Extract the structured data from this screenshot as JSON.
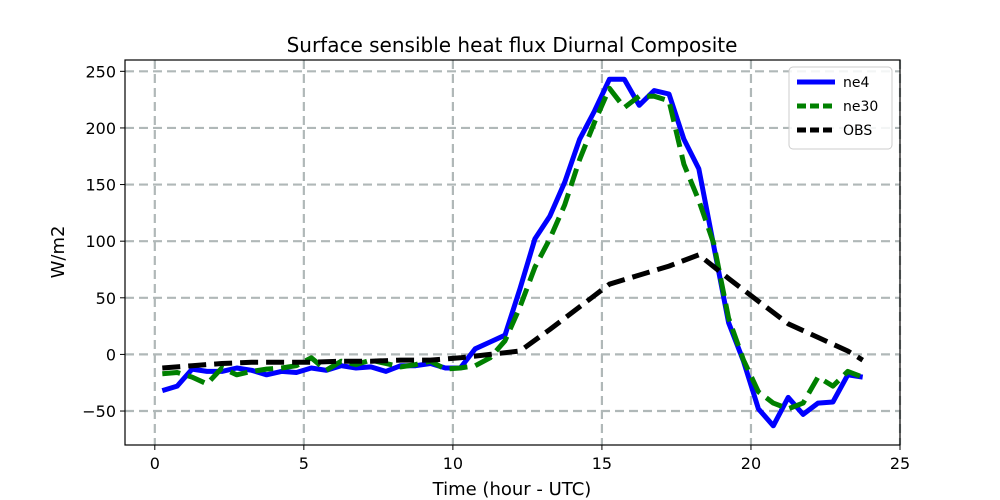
{
  "chart_data": {
    "type": "line",
    "title": "Surface sensible heat flux Diurnal Composite",
    "xlabel": "Time (hour - UTC)",
    "ylabel": "W/m2",
    "xlim": [
      -1,
      25
    ],
    "ylim": [
      -80,
      260
    ],
    "xticks": [
      0,
      5,
      10,
      15,
      20,
      25
    ],
    "yticks": [
      -50,
      0,
      50,
      100,
      150,
      200,
      250
    ],
    "grid": true,
    "grid_style": "dashed",
    "legend_position": "upper right",
    "series": [
      {
        "name": "ne4",
        "color": "#0000ff",
        "style": "solid",
        "x": [
          0.25,
          0.75,
          1.25,
          1.75,
          2.25,
          2.75,
          3.25,
          3.75,
          4.25,
          4.75,
          5.25,
          5.75,
          6.25,
          6.75,
          7.25,
          7.75,
          8.25,
          8.75,
          9.25,
          9.75,
          10.25,
          10.75,
          11.25,
          11.75,
          12.25,
          12.75,
          13.25,
          13.75,
          14.25,
          14.75,
          15.25,
          15.75,
          16.25,
          16.75,
          17.25,
          17.75,
          18.25,
          18.75,
          19.25,
          19.75,
          20.25,
          20.75,
          21.25,
          21.75,
          22.25,
          22.75,
          23.25,
          23.75
        ],
        "values": [
          -32,
          -28,
          -13,
          -15,
          -15,
          -12,
          -14,
          -18,
          -15,
          -16,
          -12,
          -14,
          -10,
          -12,
          -11,
          -15,
          -10,
          -10,
          -8,
          -12,
          -12,
          5,
          11,
          17,
          58,
          102,
          122,
          152,
          190,
          215,
          243,
          243,
          220,
          233,
          230,
          190,
          164,
          96,
          28,
          -6,
          -48,
          -63,
          -38,
          -53,
          -43,
          -42,
          -18,
          -20
        ]
      },
      {
        "name": "ne30",
        "color": "#008000",
        "style": "dashed",
        "x": [
          0.25,
          0.75,
          1.25,
          1.75,
          2.25,
          2.75,
          3.25,
          3.75,
          4.25,
          4.75,
          5.25,
          5.75,
          6.25,
          6.75,
          7.25,
          7.75,
          8.25,
          8.75,
          9.25,
          9.75,
          10.25,
          10.75,
          11.25,
          11.75,
          12.25,
          12.75,
          13.25,
          13.75,
          14.25,
          14.75,
          15.25,
          15.75,
          16.25,
          16.75,
          17.25,
          17.75,
          18.25,
          18.75,
          19.25,
          19.75,
          20.25,
          20.75,
          21.25,
          21.75,
          22.25,
          22.75,
          23.25,
          23.75
        ],
        "values": [
          -17,
          -16,
          -20,
          -26,
          -12,
          -18,
          -15,
          -13,
          -12,
          -10,
          -3,
          -14,
          -6,
          -9,
          -5,
          -8,
          -11,
          -9,
          -6,
          -13,
          -12,
          -10,
          -3,
          12,
          42,
          77,
          102,
          132,
          172,
          205,
          235,
          218,
          228,
          228,
          224,
          168,
          136,
          98,
          32,
          -5,
          -33,
          -43,
          -48,
          -43,
          -20,
          -28,
          -15,
          -20
        ]
      },
      {
        "name": "OBS",
        "color": "#000000",
        "style": "dashed",
        "x": [
          0.25,
          1.25,
          2.25,
          3.25,
          4.25,
          5.25,
          6.25,
          7.25,
          8.25,
          9.25,
          10.25,
          11.25,
          12.25,
          13.25,
          14.25,
          15.25,
          16.25,
          17.25,
          18.25,
          19.25,
          20.25,
          21.25,
          22.25,
          23.25,
          23.75
        ],
        "values": [
          -12,
          -10,
          -8,
          -7,
          -7,
          -7,
          -6,
          -6,
          -5,
          -5,
          -3,
          0,
          3,
          22,
          42,
          62,
          70,
          78,
          88,
          67,
          47,
          27,
          15,
          3,
          -5
        ]
      }
    ]
  }
}
